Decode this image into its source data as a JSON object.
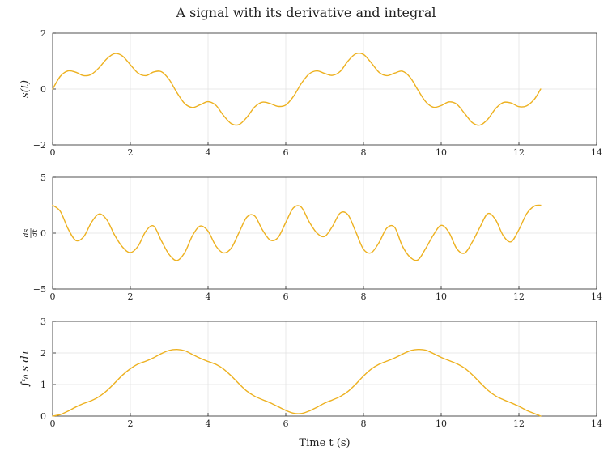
{
  "colors": {
    "series": "#EDB120",
    "axis": "#262626",
    "grid": "#e3e3e3"
  },
  "chart_data": {
    "title": "A signal with its derivative and integral",
    "xlabel": "Time t (s)",
    "panels": [
      {
        "type": "line",
        "ylabel": "s(t)",
        "xlim": [
          0,
          14
        ],
        "ylim": [
          -2,
          2
        ],
        "xticks": [
          0,
          2,
          4,
          6,
          8,
          10,
          12,
          14
        ],
        "yticks": [
          -2,
          0,
          2
        ],
        "grid": true,
        "series": [
          {
            "x": [
              0,
              0.2,
              0.4,
              0.6,
              0.8,
              1.0,
              1.2,
              1.4,
              1.6,
              1.8,
              2.0,
              2.2,
              2.4,
              2.6,
              2.8,
              3.0,
              3.2,
              3.4,
              3.6,
              3.8,
              4.0,
              4.2,
              4.4,
              4.6,
              4.8,
              5.0,
              5.2,
              5.4,
              5.6,
              5.8,
              6.0,
              6.2,
              6.4,
              6.6,
              6.8,
              7.0,
              7.2,
              7.4,
              7.6,
              7.8,
              8.0,
              8.2,
              8.4,
              8.6,
              8.8,
              9.0,
              9.2,
              9.4,
              9.6,
              9.8,
              10.0,
              10.2,
              10.4,
              10.6,
              10.8,
              11.0,
              11.2,
              11.4,
              11.6,
              11.8,
              12.0,
              12.2,
              12.4,
              12.56
            ],
            "y": [
              0.0,
              0.46,
              0.65,
              0.6,
              0.48,
              0.53,
              0.77,
              1.09,
              1.27,
              1.18,
              0.87,
              0.57,
              0.48,
              0.61,
              0.62,
              0.34,
              -0.13,
              -0.52,
              -0.66,
              -0.56,
              -0.45,
              -0.58,
              -0.95,
              -1.24,
              -1.27,
              -1.01,
              -0.64,
              -0.47,
              -0.52,
              -0.62,
              -0.57,
              -0.26,
              0.2,
              0.54,
              0.65,
              0.56,
              0.49,
              0.63,
              1.0,
              1.26,
              1.24,
              0.94,
              0.6,
              0.48,
              0.57,
              0.64,
              0.42,
              -0.03,
              -0.45,
              -0.65,
              -0.59,
              -0.46,
              -0.54,
              -0.87,
              -1.2,
              -1.29,
              -1.08,
              -0.7,
              -0.48,
              -0.5,
              -0.63,
              -0.6,
              -0.36,
              0.0
            ]
          }
        ]
      },
      {
        "type": "line",
        "ylabel_num": "ds",
        "ylabel_den": "dt",
        "xlim": [
          0,
          14
        ],
        "ylim": [
          -5,
          5
        ],
        "xticks": [
          0,
          2,
          4,
          6,
          8,
          10,
          12,
          14
        ],
        "yticks": [
          -5,
          0,
          5
        ],
        "grid": true,
        "series": [
          {
            "x": [
              0,
              0.2,
              0.4,
              0.6,
              0.8,
              1.0,
              1.2,
              1.4,
              1.6,
              1.8,
              2.0,
              2.2,
              2.4,
              2.6,
              2.8,
              3.0,
              3.2,
              3.4,
              3.6,
              3.8,
              4.0,
              4.2,
              4.4,
              4.6,
              4.8,
              5.0,
              5.2,
              5.4,
              5.6,
              5.8,
              6.0,
              6.2,
              6.4,
              6.6,
              6.8,
              7.0,
              7.2,
              7.4,
              7.6,
              7.8,
              8.0,
              8.2,
              8.4,
              8.6,
              8.8,
              9.0,
              9.2,
              9.4,
              9.6,
              9.8,
              10.0,
              10.2,
              10.4,
              10.6,
              10.8,
              11.0,
              11.2,
              11.4,
              11.6,
              11.8,
              12.0,
              12.2,
              12.4,
              12.56
            ],
            "y": [
              2.5,
              1.94,
              0.37,
              -0.66,
              -0.32,
              0.97,
              1.72,
              1.17,
              -0.2,
              -1.25,
              -1.74,
              -1.16,
              0.18,
              0.64,
              -0.69,
              -1.92,
              -2.45,
              -1.74,
              -0.22,
              0.64,
              0.18,
              -1.14,
              -1.77,
              -1.33,
              0.08,
              1.44,
              1.54,
              0.29,
              -0.62,
              -0.4,
              0.96,
              2.27,
              2.33,
              1.03,
              0.02,
              -0.3,
              0.6,
              1.8,
              1.65,
              0.13,
              -1.44,
              -1.75,
              -0.84,
              0.45,
              0.53,
              -1.15,
              -2.15,
              -2.4,
              -1.38,
              -0.16,
              0.7,
              0.07,
              -1.39,
              -1.79,
              -0.8,
              0.55,
              1.75,
              1.2,
              -0.24,
              -0.77,
              0.31,
              1.74,
              2.43,
              2.5
            ]
          }
        ]
      },
      {
        "type": "line",
        "ylabel": "∫ᵗ₀ s dτ",
        "xlim": [
          0,
          14
        ],
        "ylim": [
          0,
          3
        ],
        "xticks": [
          0,
          2,
          4,
          6,
          8,
          10,
          12,
          14
        ],
        "yticks": [
          0,
          1,
          2,
          3
        ],
        "grid": true,
        "series": [
          {
            "x": [
              0,
              0.2,
              0.4,
              0.6,
              0.8,
              1.0,
              1.2,
              1.4,
              1.6,
              1.8,
              2.0,
              2.2,
              2.4,
              2.6,
              2.8,
              3.0,
              3.2,
              3.4,
              3.6,
              3.8,
              4.0,
              4.2,
              4.4,
              4.6,
              4.8,
              5.0,
              5.2,
              5.4,
              5.6,
              5.8,
              6.0,
              6.2,
              6.4,
              6.6,
              6.8,
              7.0,
              7.2,
              7.4,
              7.6,
              7.8,
              8.0,
              8.2,
              8.4,
              8.6,
              8.8,
              9.0,
              9.2,
              9.4,
              9.6,
              9.8,
              10.0,
              10.2,
              10.4,
              10.6,
              10.8,
              11.0,
              11.2,
              11.4,
              11.6,
              11.8,
              12.0,
              12.2,
              12.4,
              12.56
            ],
            "y": [
              0.0,
              0.05,
              0.16,
              0.29,
              0.4,
              0.49,
              0.62,
              0.81,
              1.05,
              1.3,
              1.5,
              1.65,
              1.74,
              1.85,
              1.98,
              2.08,
              2.11,
              2.07,
              1.95,
              1.83,
              1.73,
              1.64,
              1.49,
              1.27,
              1.02,
              0.79,
              0.63,
              0.52,
              0.42,
              0.3,
              0.18,
              0.09,
              0.08,
              0.16,
              0.28,
              0.41,
              0.51,
              0.62,
              0.78,
              1.01,
              1.27,
              1.49,
              1.64,
              1.74,
              1.84,
              1.96,
              2.07,
              2.11,
              2.09,
              1.98,
              1.86,
              1.76,
              1.66,
              1.52,
              1.31,
              1.06,
              0.82,
              0.64,
              0.52,
              0.42,
              0.31,
              0.18,
              0.08,
              0.0
            ]
          }
        ]
      }
    ]
  }
}
